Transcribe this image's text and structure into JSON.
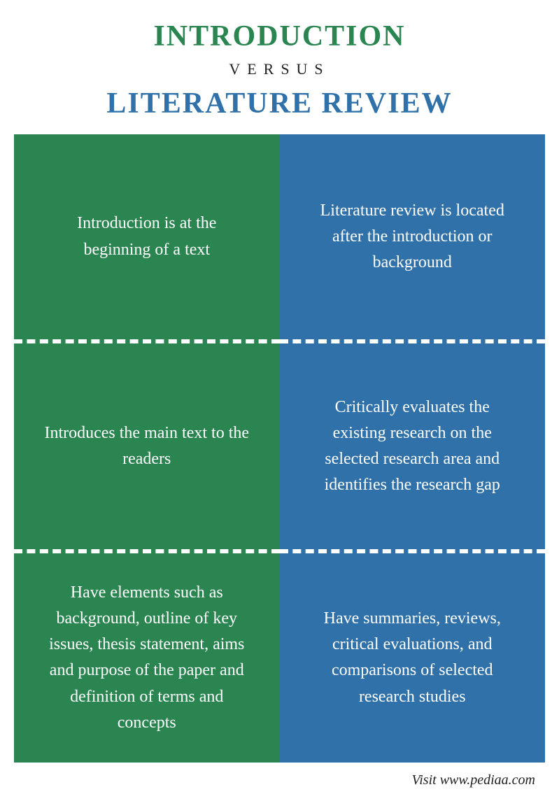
{
  "header": {
    "top": "INTRODUCTION",
    "mid": "VERSUS",
    "bottom": "LITERATURE REVIEW"
  },
  "colors": {
    "left_bg": "#2a8551",
    "right_bg": "#2f71a8",
    "top_title": "#2a8551",
    "bottom_title": "#2f71a8",
    "text": "#ffffff"
  },
  "rows": [
    {
      "left": "Introduction is at the beginning of a text",
      "right": "Literature review is located after the introduction or background"
    },
    {
      "left": "Introduces the main text to the readers",
      "right": "Critically evaluates the existing research on the selected research area and identifies the research gap"
    },
    {
      "left": "Have elements such as background, outline of key issues, thesis statement, aims and purpose of the paper and definition of terms and concepts",
      "right": "Have summaries, reviews, critical evaluations, and comparisons of selected research studies"
    }
  ],
  "footer": "Visit www.pediaa.com"
}
